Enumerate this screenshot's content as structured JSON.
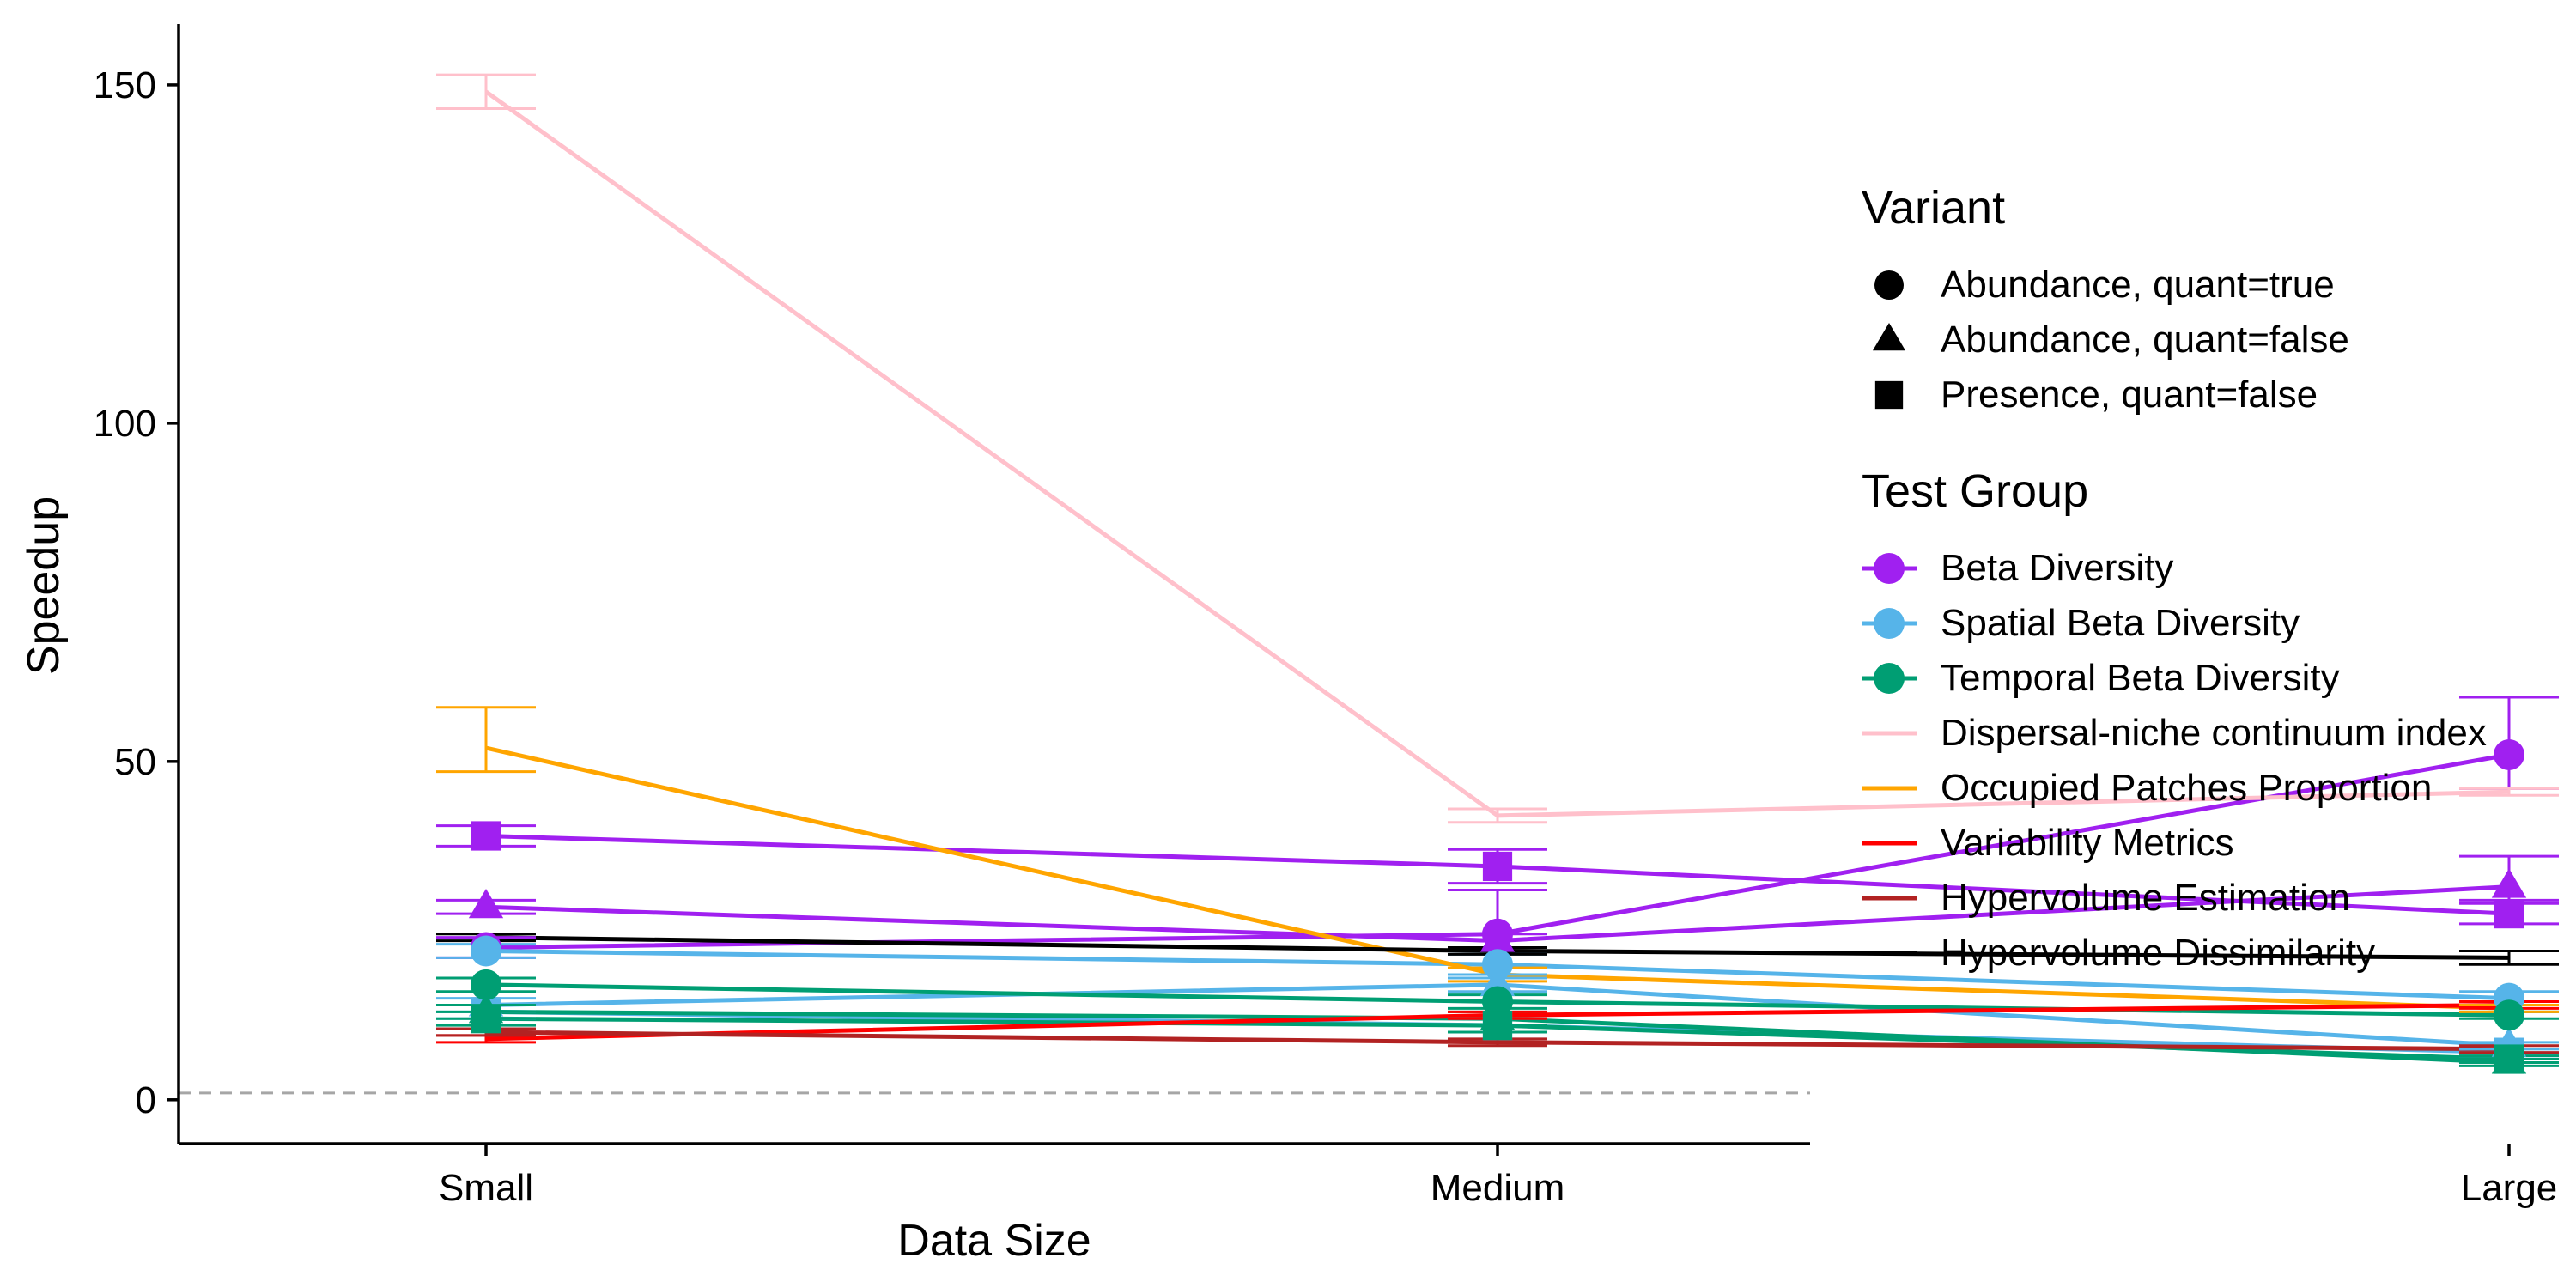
{
  "chart_data": {
    "type": "line",
    "xlabel": "Data Size",
    "ylabel": "Speedup",
    "categories": [
      "Small",
      "Medium",
      "Large"
    ],
    "ylim": [
      -6.5,
      159
    ],
    "yticks": [
      0,
      50,
      100,
      150
    ],
    "reference_line": {
      "y": 1,
      "style": "dashed",
      "color": "#a6a6a6"
    },
    "grid": false,
    "legend_position": "right",
    "legends": [
      {
        "title": "Variant",
        "entries": [
          {
            "label": "Abundance, quant=true",
            "shape": "circle"
          },
          {
            "label": "Abundance, quant=false",
            "shape": "triangle"
          },
          {
            "label": "Presence, quant=false",
            "shape": "square"
          }
        ]
      },
      {
        "title": "Test Group",
        "entries": [
          {
            "label": "Beta Diversity",
            "color": "#a020f0",
            "marker": true
          },
          {
            "label": "Spatial Beta Diversity",
            "color": "#56b4e9",
            "marker": true
          },
          {
            "label": "Temporal Beta Diversity",
            "color": "#009e73",
            "marker": true
          },
          {
            "label": "Dispersal-niche continuum index",
            "color": "#ffc0cb",
            "marker": false
          },
          {
            "label": "Occupied Patches Proportion",
            "color": "#ffa500",
            "marker": false
          },
          {
            "label": "Variability Metrics",
            "color": "#ff0000",
            "marker": false
          },
          {
            "label": "Hypervolume Estimation",
            "color": "#b22222",
            "marker": false
          },
          {
            "label": "Hypervolume Dissimilarity",
            "color": "#000000",
            "marker": false
          }
        ]
      }
    ],
    "series": [
      {
        "group": "Beta Diversity",
        "variant": "Abundance, quant=true",
        "color": "#a020f0",
        "shape": "circle",
        "values": [
          22.5,
          24.5,
          51
        ],
        "err": [
          [
            21,
            24
          ],
          [
            22.5,
            31
          ],
          [
            46,
            59.5
          ]
        ]
      },
      {
        "group": "Beta Diversity",
        "variant": "Abundance, quant=false",
        "color": "#a020f0",
        "shape": "triangle",
        "values": [
          28.5,
          23.5,
          31.5
        ],
        "err": [
          [
            27.5,
            29.5
          ],
          [
            22.5,
            24.5
          ],
          [
            29.5,
            36
          ]
        ]
      },
      {
        "group": "Beta Diversity",
        "variant": "Presence, quant=false",
        "color": "#a020f0",
        "shape": "square",
        "values": [
          39,
          34.5,
          27.5
        ],
        "err": [
          [
            37.5,
            40.5
          ],
          [
            32,
            37
          ],
          [
            26,
            29
          ]
        ]
      },
      {
        "group": "Spatial Beta Diversity",
        "variant": "Abundance, quant=true",
        "color": "#56b4e9",
        "shape": "circle",
        "values": [
          22,
          20,
          15
        ],
        "err": [
          [
            21,
            23
          ],
          [
            18.5,
            21.5
          ],
          [
            14,
            16
          ]
        ]
      },
      {
        "group": "Spatial Beta Diversity",
        "variant": "Abundance, quant=false",
        "color": "#56b4e9",
        "shape": "triangle",
        "values": [
          14,
          17,
          8
        ],
        "err": [
          [
            13,
            15
          ],
          [
            16,
            18
          ],
          [
            7.5,
            8.5
          ]
        ]
      },
      {
        "group": "Spatial Beta Diversity",
        "variant": "Presence, quant=false",
        "color": "#56b4e9",
        "shape": "square",
        "values": [
          13,
          11,
          7
        ],
        "err": [
          [
            12,
            14
          ],
          [
            10,
            12
          ],
          [
            6.5,
            7.5
          ]
        ]
      },
      {
        "group": "Temporal Beta Diversity",
        "variant": "Abundance, quant=true",
        "color": "#009e73",
        "shape": "circle",
        "values": [
          17,
          14.5,
          12.5
        ],
        "err": [
          [
            16,
            18
          ],
          [
            13.5,
            15.5
          ],
          [
            12,
            13
          ]
        ]
      },
      {
        "group": "Temporal Beta Diversity",
        "variant": "Abundance, quant=false",
        "color": "#009e73",
        "shape": "triangle",
        "values": [
          13,
          12,
          5.5
        ],
        "err": [
          [
            12,
            14
          ],
          [
            11,
            13
          ],
          [
            5,
            6
          ]
        ]
      },
      {
        "group": "Temporal Beta Diversity",
        "variant": "Presence, quant=false",
        "color": "#009e73",
        "shape": "square",
        "values": [
          12,
          11,
          6
        ],
        "err": [
          [
            11,
            13
          ],
          [
            10,
            12
          ],
          [
            5.5,
            6.5
          ]
        ]
      },
      {
        "group": "Dispersal-niche continuum index",
        "variant": "",
        "color": "#ffc0cb",
        "shape": "none",
        "values": [
          149,
          42,
          45.5
        ],
        "err": [
          [
            146.5,
            151.5
          ],
          [
            41,
            43
          ],
          [
            45,
            46
          ]
        ]
      },
      {
        "group": "Occupied Patches Proportion",
        "variant": "",
        "color": "#ffa500",
        "shape": "none",
        "values": [
          52,
          18.5,
          13.5
        ],
        "err": [
          [
            48.5,
            58
          ],
          [
            17.5,
            19.5
          ],
          [
            13,
            14
          ]
        ]
      },
      {
        "group": "Variability Metrics",
        "variant": "",
        "color": "#ff0000",
        "shape": "none",
        "values": [
          9,
          12.5,
          14
        ],
        "err": [
          [
            8.5,
            9.5
          ],
          [
            12,
            13
          ],
          [
            13.5,
            14.5
          ]
        ]
      },
      {
        "group": "Hypervolume Estimation",
        "variant": "",
        "color": "#b22222",
        "shape": "none",
        "values": [
          10,
          8.5,
          7.5
        ],
        "err": [
          [
            9.5,
            10.5
          ],
          [
            8,
            9
          ],
          [
            7,
            8
          ]
        ]
      },
      {
        "group": "Hypervolume Dissimilarity",
        "variant": "",
        "color": "#000000",
        "shape": "none",
        "values": [
          24,
          22,
          21
        ],
        "err": [
          [
            23.5,
            24.5
          ],
          [
            21.5,
            22.5
          ],
          [
            20,
            22
          ]
        ]
      }
    ]
  }
}
